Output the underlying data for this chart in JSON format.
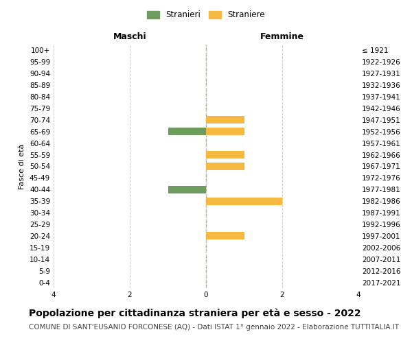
{
  "age_groups": [
    "100+",
    "95-99",
    "90-94",
    "85-89",
    "80-84",
    "75-79",
    "70-74",
    "65-69",
    "60-64",
    "55-59",
    "50-54",
    "45-49",
    "40-44",
    "35-39",
    "30-34",
    "25-29",
    "20-24",
    "15-19",
    "10-14",
    "5-9",
    "0-4"
  ],
  "birth_years": [
    "≤ 1921",
    "1922-1926",
    "1927-1931",
    "1932-1936",
    "1937-1941",
    "1942-1946",
    "1947-1951",
    "1952-1956",
    "1957-1961",
    "1962-1966",
    "1967-1971",
    "1972-1976",
    "1977-1981",
    "1982-1986",
    "1987-1991",
    "1992-1996",
    "1997-2001",
    "2002-2006",
    "2007-2011",
    "2012-2016",
    "2017-2021"
  ],
  "maschi": [
    0,
    0,
    0,
    0,
    0,
    0,
    0,
    1,
    0,
    0,
    0,
    0,
    1,
    0,
    0,
    0,
    0,
    0,
    0,
    0,
    0
  ],
  "femmine": [
    0,
    0,
    0,
    0,
    0,
    0,
    1,
    1,
    0,
    1,
    1,
    0,
    0,
    2,
    0,
    0,
    1,
    0,
    0,
    0,
    0
  ],
  "color_maschi": "#6e9b5e",
  "color_femmine": "#f5b942",
  "xlim": 4,
  "title": "Popolazione per cittadinanza straniera per età e sesso - 2022",
  "subtitle": "COMUNE DI SANT'EUSANIO FORCONESE (AQ) - Dati ISTAT 1° gennaio 2022 - Elaborazione TUTTITALIA.IT",
  "ylabel_left": "Fasce di età",
  "label_maschi": "Stranieri",
  "label_femmine": "Straniere",
  "header_left": "Maschi",
  "header_right": "Femmine",
  "bar_height": 0.65,
  "background_color": "#ffffff",
  "grid_color": "#cccccc",
  "center_line_color": "#999966",
  "tick_fontsize": 7.5,
  "label_fontsize": 8,
  "title_fontsize": 10,
  "subtitle_fontsize": 7.5
}
